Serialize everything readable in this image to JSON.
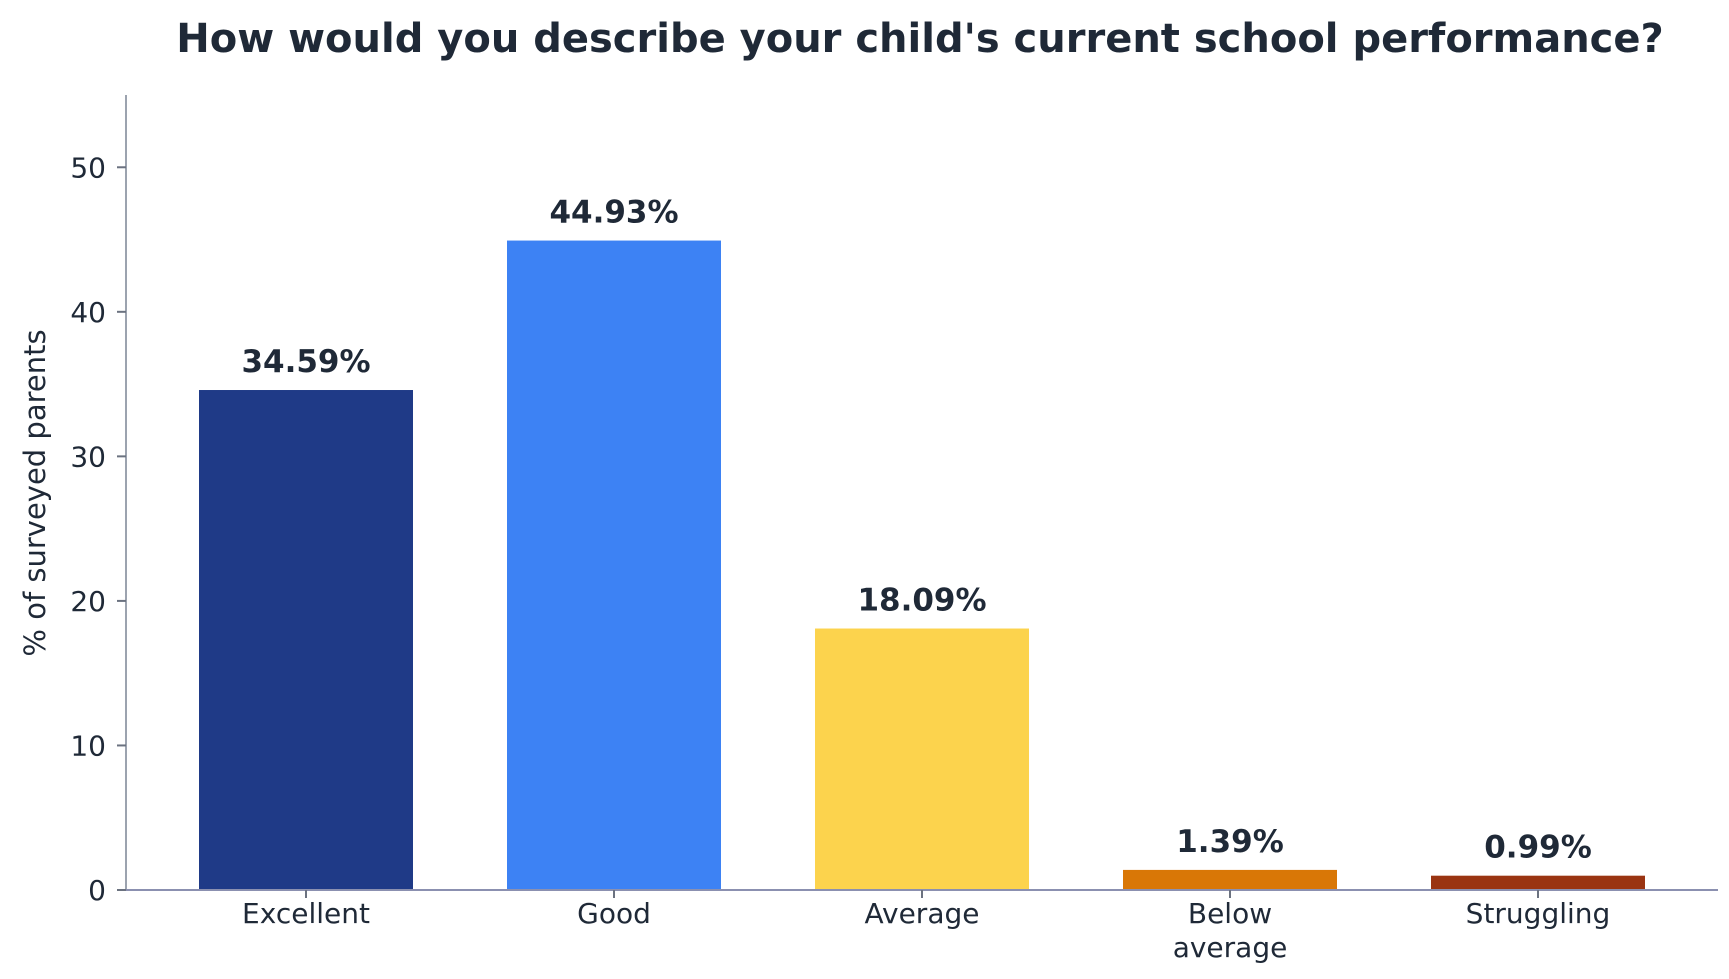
{
  "chart_data": {
    "type": "bar",
    "title": "How would you describe your child's current school performance?",
    "xlabel": "",
    "ylabel": "% of surveyed parents",
    "categories": [
      [
        "Excellent"
      ],
      [
        "Good"
      ],
      [
        "Average"
      ],
      [
        "Below",
        "average"
      ],
      [
        "Struggling"
      ]
    ],
    "values": [
      34.59,
      44.93,
      18.09,
      1.39,
      0.99
    ],
    "value_labels": [
      "34.59%",
      "44.93%",
      "18.09%",
      "1.39%",
      "0.99%"
    ],
    "colors": [
      "#1f3a87",
      "#3d82f4",
      "#fcd34d",
      "#d97706",
      "#9a3412"
    ],
    "ylim": [
      0,
      55
    ],
    "yticks": [
      0,
      10,
      20,
      30,
      40,
      50
    ],
    "grid": false,
    "legend": "none"
  }
}
